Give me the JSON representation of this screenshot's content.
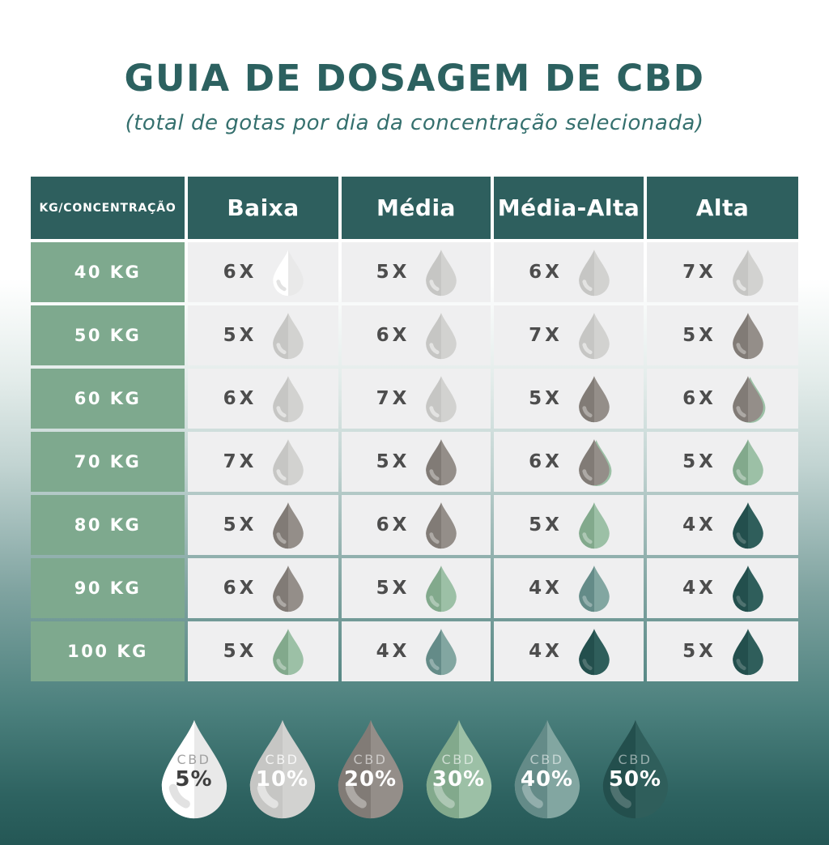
{
  "header": {
    "title": "GUIA DE DOSAGEM DE CBD",
    "subtitle": "(total de gotas por dia da concentração selecionada)"
  },
  "colors": {
    "title_text": "#2c6160",
    "subtitle_text": "#35706e",
    "table_header_bg": "#2e5f5e",
    "table_header_text": "#ffffff",
    "row_label_bg": "#7ea98e",
    "row_label_text": "#ffffff",
    "cell_bg": "#efeff0",
    "count_text": "#4d4d4d",
    "page_gradient_top": "#ffffff",
    "page_gradient_bottom": "#245755"
  },
  "drops": {
    "5%": {
      "left": "#ffffff",
      "right": "#e9e9e9",
      "highlight": "#e2e2e2",
      "cbd_text": "#a2a2a2",
      "pct_text": "#3f3f3f"
    },
    "10%": {
      "left": "#c6c6c4",
      "right": "#d2d2d0",
      "highlight": "rgba(255,255,255,0.5)",
      "cbd_text": "rgba(255,255,255,0.8)",
      "pct_text": "#ffffff"
    },
    "20%": {
      "left": "#817b76",
      "right": "#948e89",
      "highlight": "rgba(255,255,255,0.35)",
      "cbd_text": "rgba(255,255,255,0.55)",
      "pct_text": "#ffffff"
    },
    "30%": {
      "left": "#82a98c",
      "right": "#9cc0a6",
      "highlight": "rgba(255,255,255,0.35)",
      "cbd_text": "rgba(255,255,255,0.6)",
      "pct_text": "#ffffff"
    },
    "40%": {
      "left": "#648b88",
      "right": "#82a6a1",
      "highlight": "rgba(255,255,255,0.3)",
      "cbd_text": "rgba(255,255,255,0.55)",
      "pct_text": "#ffffff"
    },
    "50%": {
      "left": "#234f4d",
      "right": "#2f5e5b",
      "highlight": "rgba(255,255,255,0.2)",
      "cbd_text": "rgba(255,255,255,0.5)",
      "pct_text": "#ffffff"
    }
  },
  "chart_data": {
    "type": "table",
    "title": "GUIA DE DOSAGEM DE CBD",
    "subtitle": "(total de gotas por dia da concentração selecionada)",
    "unit": "drops per day (X) of selected CBD concentration",
    "columns": [
      "KG/CONCENTRAÇÃO",
      "Baixa",
      "Média",
      "Média-Alta",
      "Alta"
    ],
    "rows": [
      {
        "label": "40 KG",
        "cells": [
          {
            "count": "6X",
            "cbd": "5%"
          },
          {
            "count": "5X",
            "cbd": "10%"
          },
          {
            "count": "6X",
            "cbd": "10%"
          },
          {
            "count": "7X",
            "cbd": "10%"
          }
        ]
      },
      {
        "label": "50 KG",
        "cells": [
          {
            "count": "5X",
            "cbd": "10%"
          },
          {
            "count": "6X",
            "cbd": "10%"
          },
          {
            "count": "7X",
            "cbd": "10%"
          },
          {
            "count": "5X",
            "cbd": "20%"
          }
        ]
      },
      {
        "label": "60 KG",
        "cells": [
          {
            "count": "6X",
            "cbd": "10%"
          },
          {
            "count": "7X",
            "cbd": "10%"
          },
          {
            "count": "5X",
            "cbd": "20%"
          },
          {
            "count": "6X",
            "cbd": "20%",
            "green_edge": true
          }
        ]
      },
      {
        "label": "70 KG",
        "cells": [
          {
            "count": "7X",
            "cbd": "10%"
          },
          {
            "count": "5X",
            "cbd": "20%"
          },
          {
            "count": "6X",
            "cbd": "20%",
            "green_edge": true
          },
          {
            "count": "5X",
            "cbd": "30%"
          }
        ]
      },
      {
        "label": "80 KG",
        "cells": [
          {
            "count": "5X",
            "cbd": "20%"
          },
          {
            "count": "6X",
            "cbd": "20%"
          },
          {
            "count": "5X",
            "cbd": "30%"
          },
          {
            "count": "4X",
            "cbd": "50%"
          }
        ]
      },
      {
        "label": "90 KG",
        "cells": [
          {
            "count": "6X",
            "cbd": "20%"
          },
          {
            "count": "5X",
            "cbd": "30%"
          },
          {
            "count": "4X",
            "cbd": "40%"
          },
          {
            "count": "4X",
            "cbd": "50%"
          }
        ]
      },
      {
        "label": "100 KG",
        "cells": [
          {
            "count": "5X",
            "cbd": "30%"
          },
          {
            "count": "4X",
            "cbd": "40%"
          },
          {
            "count": "4X",
            "cbd": "50%"
          },
          {
            "count": "5X",
            "cbd": "50%"
          }
        ]
      }
    ],
    "legend": [
      {
        "label": "CBD",
        "pct": "5%"
      },
      {
        "label": "CBD",
        "pct": "10%"
      },
      {
        "label": "CBD",
        "pct": "20%"
      },
      {
        "label": "CBD",
        "pct": "30%"
      },
      {
        "label": "CBD",
        "pct": "40%"
      },
      {
        "label": "CBD",
        "pct": "50%"
      }
    ]
  }
}
